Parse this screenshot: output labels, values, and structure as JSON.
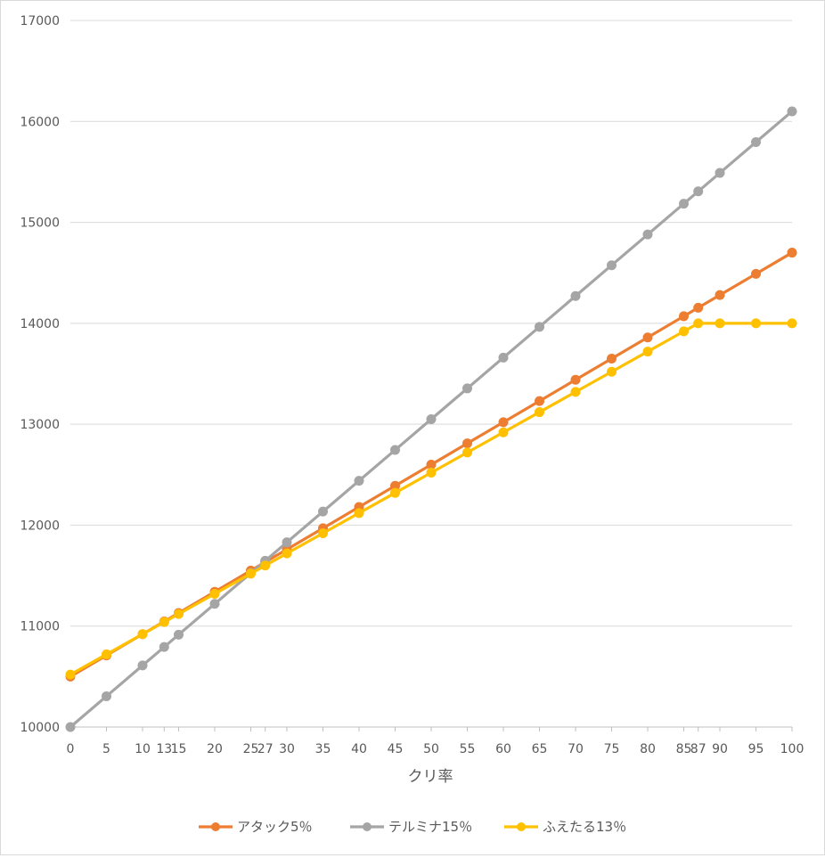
{
  "chart_data": {
    "type": "line",
    "title": "",
    "xlabel": "クリ率",
    "ylabel": "",
    "ylim": [
      10000,
      17000
    ],
    "xlim": [
      0,
      100
    ],
    "yticks": [
      10000,
      11000,
      12000,
      13000,
      14000,
      15000,
      16000,
      17000
    ],
    "xticks": [
      "0",
      "5",
      "10",
      "13",
      "15",
      "20",
      "25",
      "27",
      "30",
      "35",
      "40",
      "45",
      "50",
      "55",
      "60",
      "65",
      "70",
      "75",
      "80",
      "85",
      "87",
      "90",
      "95",
      "100"
    ],
    "grid": "horizontal",
    "legend_position": "bottom",
    "x": [
      0,
      5,
      10,
      13,
      15,
      20,
      25,
      27,
      30,
      35,
      40,
      45,
      50,
      55,
      60,
      65,
      70,
      75,
      80,
      85,
      87,
      90,
      95,
      100
    ],
    "series": [
      {
        "name": "アタック5％",
        "color": "#ed7d31",
        "values": [
          10500,
          10710,
          10920,
          11046,
          11130,
          11340,
          11550,
          11634,
          11760,
          11970,
          12180,
          12390,
          12600,
          12810,
          13020,
          13230,
          13440,
          13650,
          13860,
          14070,
          14154,
          14280,
          14490,
          14700
        ]
      },
      {
        "name": "テルミナ15％",
        "color": "#a5a5a5",
        "values": [
          10000,
          10305,
          10610,
          10793,
          10915,
          11220,
          11525,
          11647,
          11830,
          12135,
          12440,
          12745,
          13050,
          13355,
          13660,
          13965,
          14270,
          14575,
          14880,
          15185,
          15307,
          15490,
          15795,
          16100
        ]
      },
      {
        "name": "ふえたる13％",
        "color": "#ffc000",
        "values": [
          10520,
          10720,
          10920,
          11040,
          11120,
          11320,
          11520,
          11600,
          11720,
          11920,
          12120,
          12320,
          12520,
          12720,
          12920,
          13120,
          13320,
          13520,
          13720,
          13920,
          14000,
          14000,
          14000,
          14000
        ]
      }
    ]
  }
}
